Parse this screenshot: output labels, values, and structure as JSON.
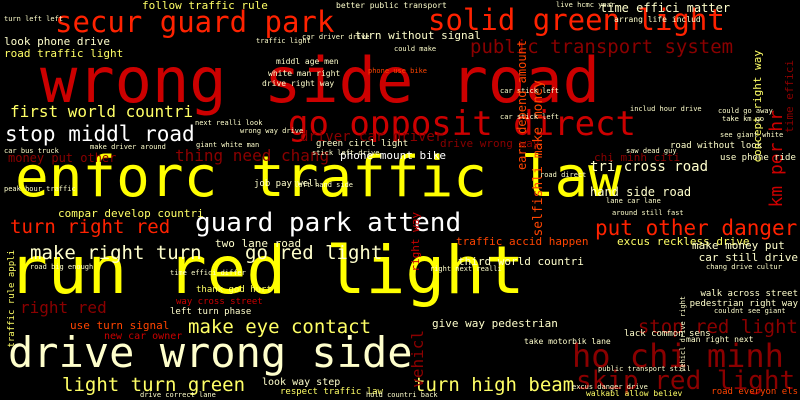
{
  "words": [
    {
      "text": "wrong side road",
      "color": "#cc0000"
    },
    {
      "text": "enforc traffic law",
      "color": "#ffff00"
    },
    {
      "text": "run red light",
      "color": "#ffff00"
    },
    {
      "text": "drive wrong side",
      "color": "#ffffcc"
    },
    {
      "text": "secur guard park",
      "color": "#ff2200"
    },
    {
      "text": "solid green light",
      "color": "#ff2200"
    },
    {
      "text": "go opposit direct",
      "color": "#cc0000"
    },
    {
      "text": "guard park attend",
      "color": "#ffffff"
    },
    {
      "text": "stop middl road",
      "color": "#ffffff"
    },
    {
      "text": "make right turn",
      "color": "#ffffcc"
    },
    {
      "text": "go red light",
      "color": "#ffffcc"
    },
    {
      "text": "turn right red",
      "color": "#ff2200"
    },
    {
      "text": "put other danger",
      "color": "#ff2200"
    },
    {
      "text": "make eye contact",
      "color": "#ffff66"
    },
    {
      "text": "ho chi minh",
      "color": "#8b0000"
    },
    {
      "text": "skip red light",
      "color": "#8b0000"
    },
    {
      "text": "stop red light",
      "color": "#8b0000"
    },
    {
      "text": "light turn green",
      "color": "#ffff66"
    },
    {
      "text": "turn high beam",
      "color": "#ffff66"
    },
    {
      "text": "public transport system",
      "color": "#8b0000"
    },
    {
      "text": "first world countri",
      "color": "#ffff66"
    },
    {
      "text": "right red",
      "color": "#8b0000"
    },
    {
      "text": "km per hr",
      "color": "#cc0000"
    },
    {
      "text": "time effici matter",
      "color": "#ffffcc"
    },
    {
      "text": "look phone drive",
      "color": "#ffffcc"
    },
    {
      "text": "road traffic light",
      "color": "#ffff66"
    },
    {
      "text": "driver car driver",
      "color": "#8b0000"
    },
    {
      "text": "thing need chang",
      "color": "#8b0000"
    },
    {
      "text": "money put other",
      "color": "#8b0000"
    },
    {
      "text": "selfishli make money",
      "color": "#ff4400"
    },
    {
      "text": "tri cross road",
      "color": "#ffffcc"
    },
    {
      "text": "hand side road",
      "color": "#ffffcc"
    },
    {
      "text": "excus reckless drive",
      "color": "#ffff66"
    },
    {
      "text": "phone mount bike",
      "color": "#ffffff"
    },
    {
      "text": "two lane road",
      "color": "#ffffcc"
    },
    {
      "text": "make money put",
      "color": "#ffffcc"
    },
    {
      "text": "car still drive",
      "color": "#ffffcc"
    },
    {
      "text": "give way pedestrian",
      "color": "#ffffcc"
    },
    {
      "text": "use turn signal",
      "color": "#ff4400"
    },
    {
      "text": "follow traffic rule",
      "color": "#ffff66"
    },
    {
      "text": "turn without signal",
      "color": "#ffffcc"
    },
    {
      "text": "chi minh citi",
      "color": "#8b0000"
    },
    {
      "text": "compar develop countri",
      "color": "#ffff66"
    },
    {
      "text": "third world countri",
      "color": "#ffffcc"
    },
    {
      "text": "traffic accid happen",
      "color": "#ff4400"
    },
    {
      "text": "look way step",
      "color": "#ffffcc"
    },
    {
      "text": "way cross street",
      "color": "#cc0000"
    },
    {
      "text": "new car owner",
      "color": "#cc0000"
    },
    {
      "text": "right way",
      "color": "#cc0000"
    },
    {
      "text": "vehicl",
      "color": "#8b0000"
    },
    {
      "text": "traffic rule appli",
      "color": "#ffff66"
    },
    {
      "text": "green circl light",
      "color": "#ffffcc"
    },
    {
      "text": "road without look",
      "color": "#ffffcc"
    },
    {
      "text": "use phone ride",
      "color": "#ffffcc"
    },
    {
      "text": "job pay well",
      "color": "#ffffcc"
    },
    {
      "text": "thank god hurt",
      "color": "#ffff66"
    },
    {
      "text": "left turn phase",
      "color": "#ffffcc"
    },
    {
      "text": "respect traffic law",
      "color": "#ffff66"
    },
    {
      "text": "walk across street",
      "color": "#ffffcc"
    },
    {
      "text": "pedestrian right way",
      "color": "#ffffcc"
    },
    {
      "text": "lack common sens",
      "color": "#ffffcc"
    },
    {
      "text": "take motorbik lane",
      "color": "#ffffcc"
    },
    {
      "text": "man right next",
      "color": "#ffffcc"
    },
    {
      "text": "road everyon els",
      "color": "#ff4400"
    },
    {
      "text": "white man right",
      "color": "#ffffcc"
    },
    {
      "text": "drive right way",
      "color": "#ffffcc"
    },
    {
      "text": "middl age men",
      "color": "#ffffcc"
    },
    {
      "text": "better public transport",
      "color": "#ffffcc"
    },
    {
      "text": "arrang life includ",
      "color": "#ffffcc"
    },
    {
      "text": "concept right way",
      "color": "#ffff66"
    },
    {
      "text": "time effici",
      "color": "#8b0000"
    },
    {
      "text": "stick left drive",
      "color": "#ffffcc"
    },
    {
      "text": "left hand side",
      "color": "#ffffcc"
    },
    {
      "text": "wrong way drive",
      "color": "#ffffcc"
    },
    {
      "text": "see giant white",
      "color": "#ffffcc"
    },
    {
      "text": "car bus truck",
      "color": "#ffffcc"
    },
    {
      "text": "peak hour traffic",
      "color": "#ffffcc"
    },
    {
      "text": "road big enough",
      "color": "#ffffcc"
    },
    {
      "text": "drive correct lane",
      "color": "#ffffcc"
    },
    {
      "text": "hold countri back",
      "color": "#ffffcc"
    },
    {
      "text": "walkabl allow believ",
      "color": "#ffff66"
    },
    {
      "text": "public transport still",
      "color": "#ffffcc"
    },
    {
      "text": "time effici differ",
      "color": "#ffffcc"
    },
    {
      "text": "car stick left",
      "color": "#ffffcc"
    },
    {
      "text": "includ hour drive",
      "color": "#ffffcc"
    },
    {
      "text": "could go away",
      "color": "#ffffcc"
    },
    {
      "text": "take km go",
      "color": "#ffffcc"
    },
    {
      "text": "phone use bike",
      "color": "#ff4400"
    },
    {
      "text": "live hcmc year",
      "color": "#ffffcc"
    },
    {
      "text": "turn left left",
      "color": "#ffffcc"
    },
    {
      "text": "car driver drive",
      "color": "#ffffcc"
    },
    {
      "text": "traffic light",
      "color": "#ffffcc"
    },
    {
      "text": "make driver around",
      "color": "#ffffcc"
    },
    {
      "text": "next realli look",
      "color": "#ffffcc"
    },
    {
      "text": "giant white man",
      "color": "#ffffcc"
    },
    {
      "text": "saw dead guy",
      "color": "#ffffcc"
    },
    {
      "text": "lane car lane",
      "color": "#ffffcc"
    },
    {
      "text": "excus danger drive",
      "color": "#ffffcc"
    },
    {
      "text": "road direct",
      "color": "#ffffcc"
    },
    {
      "text": "could make",
      "color": "#ffffcc"
    },
    {
      "text": "chang drive cultur",
      "color": "#ffffcc"
    },
    {
      "text": "couldnt see giant",
      "color": "#ffffcc"
    },
    {
      "text": "vehicl drive right",
      "color": "#ffffcc"
    },
    {
      "text": "earn depend amount",
      "color": "#ff4400"
    },
    {
      "text": "drive wrong way",
      "color": "#8b0000"
    },
    {
      "text": "car stick left",
      "color": "#ffffcc"
    },
    {
      "text": "right next realli",
      "color": "#ffffcc"
    },
    {
      "text": "around still fast",
      "color": "#ffffcc"
    }
  ]
}
